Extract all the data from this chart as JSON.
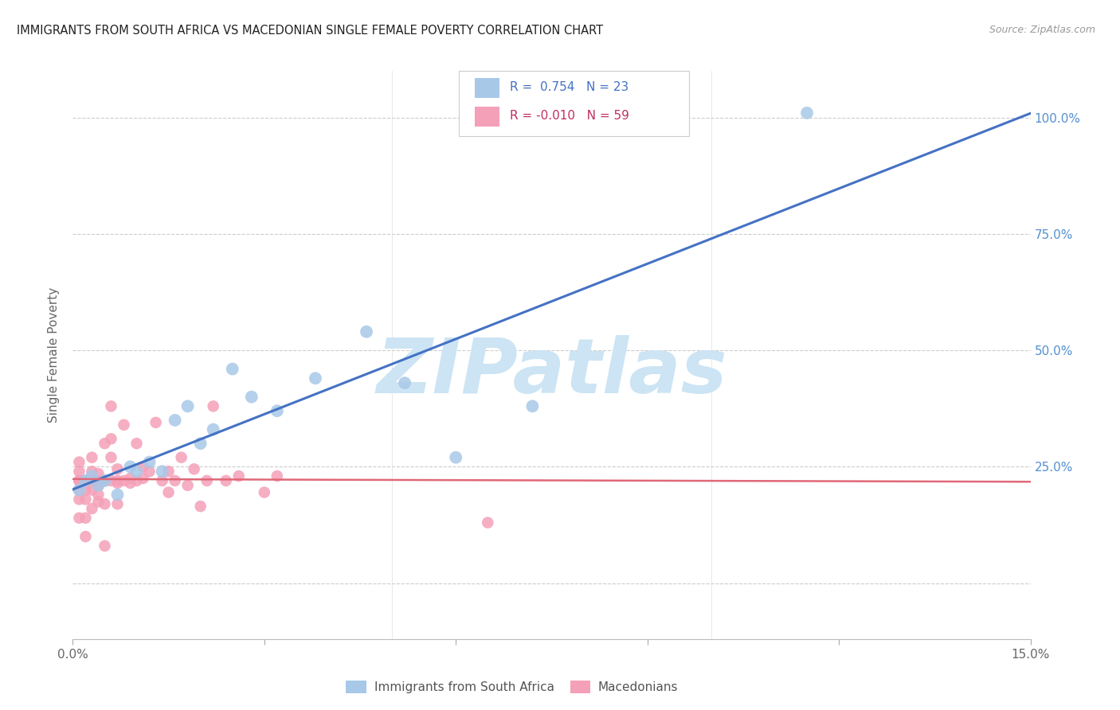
{
  "title": "IMMIGRANTS FROM SOUTH AFRICA VS MACEDONIAN SINGLE FEMALE POVERTY CORRELATION CHART",
  "source": "Source: ZipAtlas.com",
  "ylabel": "Single Female Poverty",
  "legend_label1": "Immigrants from South Africa",
  "legend_label2": "Macedonians",
  "r1_text": "R =  0.754   N = 23",
  "r2_text": "R = -0.010   N = 59",
  "xlim": [
    0.0,
    0.15
  ],
  "ylim": [
    -0.12,
    1.1
  ],
  "color_blue": "#a8c8e8",
  "color_pink": "#f4a0b8",
  "color_blue_line": "#4472c4",
  "color_pink_line": "#e06878",
  "watermark": "ZIPatlas",
  "watermark_color": "#cce4f4",
  "blue_x": [
    0.001,
    0.002,
    0.003,
    0.004,
    0.005,
    0.007,
    0.009,
    0.01,
    0.012,
    0.014,
    0.016,
    0.018,
    0.02,
    0.022,
    0.025,
    0.028,
    0.032,
    0.038,
    0.046,
    0.052,
    0.06,
    0.072,
    0.115
  ],
  "blue_y": [
    0.2,
    0.22,
    0.23,
    0.21,
    0.22,
    0.19,
    0.25,
    0.24,
    0.26,
    0.24,
    0.35,
    0.38,
    0.3,
    0.33,
    0.46,
    0.4,
    0.37,
    0.44,
    0.54,
    0.43,
    0.27,
    0.38,
    1.01
  ],
  "pink_x": [
    0.001,
    0.001,
    0.001,
    0.001,
    0.001,
    0.001,
    0.001,
    0.002,
    0.002,
    0.002,
    0.002,
    0.002,
    0.003,
    0.003,
    0.003,
    0.003,
    0.003,
    0.004,
    0.004,
    0.004,
    0.004,
    0.004,
    0.005,
    0.005,
    0.005,
    0.005,
    0.006,
    0.006,
    0.006,
    0.006,
    0.007,
    0.007,
    0.007,
    0.007,
    0.008,
    0.008,
    0.009,
    0.009,
    0.01,
    0.01,
    0.011,
    0.011,
    0.012,
    0.013,
    0.014,
    0.015,
    0.015,
    0.016,
    0.017,
    0.018,
    0.019,
    0.02,
    0.021,
    0.022,
    0.024,
    0.026,
    0.03,
    0.032,
    0.065
  ],
  "pink_y": [
    0.22,
    0.2,
    0.18,
    0.14,
    0.22,
    0.24,
    0.26,
    0.22,
    0.2,
    0.18,
    0.14,
    0.1,
    0.27,
    0.24,
    0.22,
    0.16,
    0.2,
    0.235,
    0.21,
    0.19,
    0.175,
    0.22,
    0.22,
    0.3,
    0.17,
    0.08,
    0.27,
    0.31,
    0.38,
    0.22,
    0.245,
    0.215,
    0.17,
    0.22,
    0.34,
    0.22,
    0.225,
    0.215,
    0.3,
    0.22,
    0.25,
    0.225,
    0.24,
    0.345,
    0.22,
    0.24,
    0.195,
    0.22,
    0.27,
    0.21,
    0.245,
    0.165,
    0.22,
    0.38,
    0.22,
    0.23,
    0.195,
    0.23,
    0.13
  ]
}
